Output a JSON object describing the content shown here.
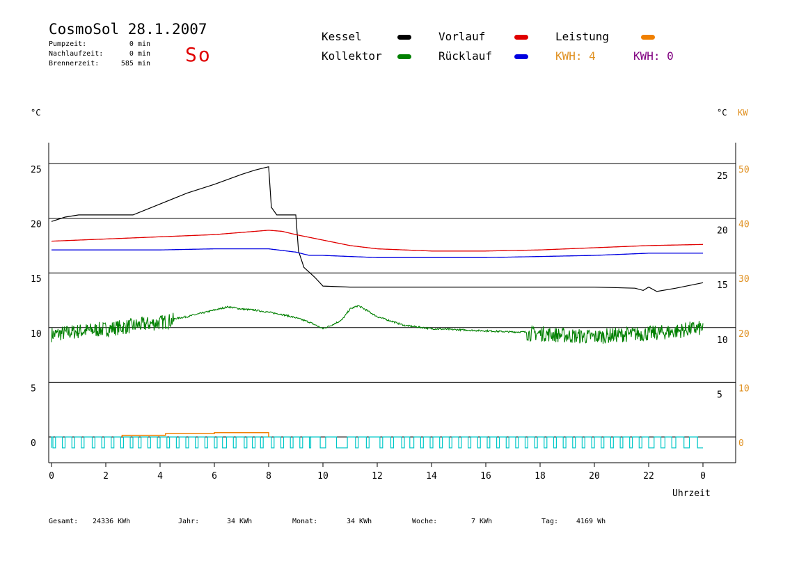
{
  "header": {
    "title": "CosmoSol 28.1.2007",
    "day": "So",
    "stats": [
      {
        "label": "Pumpzeit:",
        "value": "0 min"
      },
      {
        "label": "Nachlaufzeit:",
        "value": "0 min"
      },
      {
        "label": "Brennerzeit:",
        "value": "585 min"
      }
    ]
  },
  "legend": {
    "kessel": "Kessel",
    "kollektor": "Kollektor",
    "vorlauf": "Vorlauf",
    "ruecklauf": "Rücklauf",
    "leistung": "Leistung",
    "kwh1": "KWH: 4",
    "kwh2": "KWH: 0"
  },
  "axis": {
    "left_unit": "°C",
    "right_unit_c": "°C",
    "right_unit_kw": "KW",
    "x_label": "Uhrzeit"
  },
  "footer": {
    "gesamt_label": "Gesamt:",
    "gesamt_value": "24336 KWh",
    "jahr_label": "Jahr:",
    "jahr_value": "34 KWh",
    "monat_label": "Monat:",
    "monat_value": "34 KWh",
    "woche_label": "Woche:",
    "woche_value": "7 KWh",
    "tag_label": "Tag:",
    "tag_value": "4169 Wh"
  },
  "colors": {
    "kessel": "#000000",
    "kollektor": "#008000",
    "vorlauf": "#e00000",
    "ruecklauf": "#0000e0",
    "leistung": "#f08000",
    "kwh1": "#e09020",
    "kwh2": "#800080",
    "pump": "#00c8c8",
    "kw_axis": "#e09020"
  },
  "chart_data": {
    "type": "line",
    "xlabel": "Uhrzeit",
    "ylabel": "°C",
    "xlim": [
      0,
      24
    ],
    "ylim": [
      -2,
      27
    ],
    "x_ticks": [
      "0",
      "2",
      "4",
      "6",
      "8",
      "10",
      "12",
      "14",
      "16",
      "18",
      "20",
      "22",
      "0"
    ],
    "y_ticks_left": [
      "0",
      "5",
      "10",
      "15",
      "20",
      "25"
    ],
    "y_ticks_right_c": [
      "5",
      "10",
      "15",
      "20",
      "25"
    ],
    "y_ticks_right_kw": [
      "0",
      "10",
      "20",
      "30",
      "40",
      "50"
    ],
    "grid": true,
    "series": [
      {
        "name": "Kessel",
        "color": "#000000",
        "x": [
          0,
          0.5,
          1,
          3,
          4,
          5,
          6,
          7,
          7.5,
          8,
          8.1,
          8.3,
          9,
          9.1,
          9.3,
          9.7,
          10,
          11,
          12,
          14,
          16,
          18,
          20,
          21.5,
          21.8,
          22,
          22.3,
          23,
          24
        ],
        "y": [
          19.7,
          20.1,
          20.3,
          20.3,
          21.3,
          22.3,
          23.1,
          24,
          24.4,
          24.7,
          21,
          20.3,
          20.3,
          17,
          15.5,
          14.6,
          13.8,
          13.7,
          13.7,
          13.7,
          13.7,
          13.7,
          13.7,
          13.6,
          13.4,
          13.7,
          13.3,
          13.6,
          14.1
        ]
      },
      {
        "name": "Vorlauf",
        "color": "#e00000",
        "x": [
          0,
          2,
          4,
          6,
          7,
          8,
          8.5,
          9,
          10,
          11,
          12,
          14,
          16,
          18,
          20,
          22,
          24
        ],
        "y": [
          17.9,
          18.1,
          18.3,
          18.5,
          18.7,
          18.9,
          18.8,
          18.5,
          18,
          17.5,
          17.2,
          17,
          17,
          17.1,
          17.3,
          17.5,
          17.6
        ]
      },
      {
        "name": "Rücklauf",
        "color": "#0000e0",
        "x": [
          0,
          2,
          4,
          6,
          8,
          9,
          9.5,
          10,
          11,
          12,
          14,
          16,
          18,
          20,
          22,
          24
        ],
        "y": [
          17.1,
          17.1,
          17.1,
          17.2,
          17.2,
          16.9,
          16.6,
          16.6,
          16.5,
          16.4,
          16.4,
          16.4,
          16.5,
          16.6,
          16.8,
          16.8
        ],
        "sparse": true
      },
      {
        "name": "Kollektor",
        "color": "#008000",
        "x": [
          0,
          1,
          2,
          3,
          4,
          5,
          6,
          6.5,
          7,
          7.5,
          8,
          8.5,
          9,
          9.5,
          10,
          10.3,
          10.7,
          11,
          11.3,
          11.6,
          12,
          12.5,
          13,
          14,
          15,
          16,
          17,
          18,
          19,
          20,
          21,
          22,
          23,
          23.5,
          24
        ],
        "y": [
          9.5,
          9.8,
          10,
          10.3,
          10.6,
          11,
          11.6,
          11.9,
          11.7,
          11.6,
          11.4,
          11.2,
          10.9,
          10.5,
          9.9,
          10.2,
          10.7,
          11.7,
          12,
          11.6,
          11,
          10.6,
          10.2,
          9.9,
          9.8,
          9.7,
          9.6,
          9.6,
          9.4,
          9.3,
          9.5,
          9.6,
          9.8,
          10,
          10.1
        ],
        "noisy_ranges": [
          [
            0,
            4.5
          ],
          [
            17.5,
            24
          ]
        ]
      },
      {
        "name": "Leistung",
        "color": "#f08000",
        "x": [
          2.6,
          2.6,
          4.2,
          4.2,
          6,
          6,
          8,
          8
        ],
        "y": [
          0,
          0.15,
          0.15,
          0.3,
          0.3,
          0.4,
          0.4,
          0
        ]
      }
    ],
    "pump_cycles": {
      "color": "#00c8c8",
      "level_on": 0,
      "level_off": -1,
      "on_intervals": [
        [
          0,
          0.05
        ],
        [
          0.15,
          0.4
        ],
        [
          0.5,
          0.75
        ],
        [
          0.85,
          1.1
        ],
        [
          1.2,
          1.5
        ],
        [
          1.6,
          1.85
        ],
        [
          1.95,
          2.2
        ],
        [
          2.3,
          2.55
        ],
        [
          2.65,
          2.9
        ],
        [
          3.0,
          3.2
        ],
        [
          3.3,
          3.55
        ],
        [
          3.65,
          3.9
        ],
        [
          4.0,
          4.25
        ],
        [
          4.35,
          4.6
        ],
        [
          4.7,
          4.95
        ],
        [
          5.05,
          5.3
        ],
        [
          5.4,
          5.65
        ],
        [
          5.75,
          6.0
        ],
        [
          6.1,
          6.3
        ],
        [
          6.45,
          6.7
        ],
        [
          6.8,
          7.1
        ],
        [
          7.2,
          7.4
        ],
        [
          7.5,
          7.7
        ],
        [
          7.8,
          8.1
        ],
        [
          8.2,
          8.45
        ],
        [
          8.55,
          8.8
        ],
        [
          8.9,
          9.15
        ],
        [
          9.25,
          9.5
        ],
        [
          9.55,
          9.9
        ],
        [
          10.1,
          10.5
        ],
        [
          10.9,
          11.2
        ],
        [
          11.3,
          11.6
        ],
        [
          11.7,
          12.1
        ],
        [
          12.2,
          12.5
        ],
        [
          12.6,
          12.9
        ],
        [
          13.0,
          13.2
        ],
        [
          13.35,
          13.6
        ],
        [
          13.7,
          13.95
        ],
        [
          14.05,
          14.3
        ],
        [
          14.4,
          14.65
        ],
        [
          14.75,
          15.0
        ],
        [
          15.1,
          15.35
        ],
        [
          15.45,
          15.7
        ],
        [
          15.8,
          16.05
        ],
        [
          16.15,
          16.4
        ],
        [
          16.5,
          16.75
        ],
        [
          16.85,
          17.1
        ],
        [
          17.2,
          17.45
        ],
        [
          17.55,
          17.8
        ],
        [
          17.9,
          18.15
        ],
        [
          18.25,
          18.5
        ],
        [
          18.6,
          18.85
        ],
        [
          18.95,
          19.2
        ],
        [
          19.3,
          19.55
        ],
        [
          19.65,
          19.9
        ],
        [
          20.0,
          20.25
        ],
        [
          20.35,
          20.6
        ],
        [
          20.7,
          20.95
        ],
        [
          21.05,
          21.3
        ],
        [
          21.4,
          21.65
        ],
        [
          21.75,
          22.0
        ],
        [
          22.2,
          22.45
        ],
        [
          22.6,
          22.85
        ],
        [
          23.0,
          23.3
        ],
        [
          23.5,
          23.8
        ]
      ]
    }
  }
}
